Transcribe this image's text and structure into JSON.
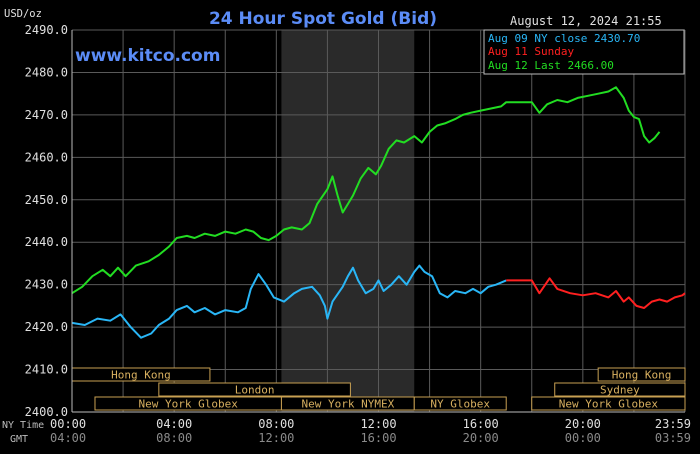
{
  "chart_data": {
    "type": "line",
    "title": "24 Hour Spot Gold (Bid)",
    "brand": "www.kitco.com",
    "timestamp": "August 12, 2024 21:55",
    "ylabel": "USD/oz",
    "ylim": [
      2400,
      2490
    ],
    "yticks": [
      "2490.0",
      "2480.0",
      "2470.0",
      "2460.0",
      "2450.0",
      "2440.0",
      "2430.0",
      "2420.0",
      "2410.0",
      "2400.0"
    ],
    "x_hours": [
      0,
      24
    ],
    "xtick_ny": [
      "00:00",
      "04:00",
      "08:00",
      "12:00",
      "16:00",
      "20:00",
      "23:59"
    ],
    "xtick_gmt": [
      "04:00",
      "08:00",
      "12:00",
      "16:00",
      "20:00",
      "00:00",
      "03:59"
    ],
    "row_labels": {
      "ny": "NY Time",
      "gmt": "GMT"
    },
    "legend": [
      {
        "name": "Aug 09 NY close 2430.70",
        "color": "#29b6f6"
      },
      {
        "name": "Aug 11 Sunday",
        "color": "#ff2020"
      },
      {
        "name": "Aug 12 Last 2466.00",
        "color": "#22dd22"
      }
    ],
    "highlight_band": [
      8.2,
      13.4
    ],
    "grid": true,
    "sessions": [
      {
        "name": "Hong Kong",
        "start": 0,
        "end": 5.4,
        "row": 0
      },
      {
        "name": "London",
        "start": 3.4,
        "end": 10.9,
        "row": 1
      },
      {
        "name": "New York Globex",
        "start": 0.9,
        "end": 8.2,
        "row": 2
      },
      {
        "name": "New York NYMEX",
        "start": 8.2,
        "end": 13.4,
        "row": 2
      },
      {
        "name": "NY Globex",
        "start": 13.4,
        "end": 17.0,
        "row": 2
      },
      {
        "name": "Hong Kong",
        "start": 20.6,
        "end": 24,
        "row": 0
      },
      {
        "name": "Sydney",
        "start": 18.9,
        "end": 24,
        "row": 1
      },
      {
        "name": "New York Globex",
        "start": 18.0,
        "end": 24,
        "row": 2
      }
    ],
    "series": [
      {
        "name": "Aug 09 NY close 2430.70",
        "color": "#29b6f6",
        "points": [
          [
            0,
            2421.0
          ],
          [
            0.5,
            2420.5
          ],
          [
            1.0,
            2422.0
          ],
          [
            1.5,
            2421.5
          ],
          [
            1.9,
            2423.0
          ],
          [
            2.3,
            2420.0
          ],
          [
            2.7,
            2417.5
          ],
          [
            3.1,
            2418.5
          ],
          [
            3.4,
            2420.5
          ],
          [
            3.8,
            2422.0
          ],
          [
            4.1,
            2424.0
          ],
          [
            4.5,
            2425.0
          ],
          [
            4.8,
            2423.5
          ],
          [
            5.2,
            2424.5
          ],
          [
            5.6,
            2423.0
          ],
          [
            6.0,
            2424.0
          ],
          [
            6.5,
            2423.5
          ],
          [
            6.8,
            2424.5
          ],
          [
            7.0,
            2429.0
          ],
          [
            7.3,
            2432.5
          ],
          [
            7.6,
            2430.0
          ],
          [
            7.9,
            2427.0
          ],
          [
            8.3,
            2426.0
          ],
          [
            8.7,
            2428.0
          ],
          [
            9.0,
            2429.0
          ],
          [
            9.4,
            2429.5
          ],
          [
            9.7,
            2427.5
          ],
          [
            9.9,
            2425.0
          ],
          [
            10.0,
            2422.0
          ],
          [
            10.2,
            2426.0
          ],
          [
            10.6,
            2429.5
          ],
          [
            10.8,
            2432.0
          ],
          [
            11.0,
            2434.0
          ],
          [
            11.2,
            2431.0
          ],
          [
            11.5,
            2428.0
          ],
          [
            11.8,
            2429.0
          ],
          [
            12.0,
            2431.0
          ],
          [
            12.2,
            2428.5
          ],
          [
            12.5,
            2430.0
          ],
          [
            12.8,
            2432.0
          ],
          [
            13.1,
            2430.0
          ],
          [
            13.4,
            2433.0
          ],
          [
            13.6,
            2434.5
          ],
          [
            13.8,
            2433.0
          ],
          [
            14.1,
            2432.0
          ],
          [
            14.4,
            2428.0
          ],
          [
            14.7,
            2427.0
          ],
          [
            15.0,
            2428.5
          ],
          [
            15.4,
            2428.0
          ],
          [
            15.7,
            2429.0
          ],
          [
            16.0,
            2428.0
          ],
          [
            16.3,
            2429.5
          ],
          [
            16.6,
            2430.0
          ],
          [
            17.0,
            2431.0
          ]
        ]
      },
      {
        "name": "Aug 11 Sunday",
        "color": "#ff2020",
        "points": [
          [
            17.0,
            2431.0
          ],
          [
            17.5,
            2431.0
          ],
          [
            18.0,
            2431.0
          ],
          [
            18.3,
            2428.0
          ],
          [
            18.7,
            2431.5
          ],
          [
            19.0,
            2429.0
          ],
          [
            19.5,
            2428.0
          ],
          [
            20.0,
            2427.5
          ],
          [
            20.5,
            2428.0
          ],
          [
            21.0,
            2427.0
          ],
          [
            21.3,
            2428.5
          ],
          [
            21.6,
            2426.0
          ],
          [
            21.8,
            2427.0
          ],
          [
            22.1,
            2425.0
          ],
          [
            22.4,
            2424.5
          ],
          [
            22.7,
            2426.0
          ],
          [
            23.0,
            2426.5
          ],
          [
            23.3,
            2426.0
          ],
          [
            23.6,
            2427.0
          ],
          [
            23.9,
            2427.5
          ],
          [
            24.0,
            2428.0
          ]
        ]
      },
      {
        "name": "Aug 12 Last 2466.00",
        "color": "#22dd22",
        "points": [
          [
            0,
            2428.0
          ],
          [
            0.4,
            2429.5
          ],
          [
            0.8,
            2432.0
          ],
          [
            1.2,
            2433.5
          ],
          [
            1.5,
            2432.0
          ],
          [
            1.8,
            2434.0
          ],
          [
            2.1,
            2432.0
          ],
          [
            2.5,
            2434.5
          ],
          [
            3.0,
            2435.5
          ],
          [
            3.4,
            2437.0
          ],
          [
            3.8,
            2439.0
          ],
          [
            4.1,
            2441.0
          ],
          [
            4.5,
            2441.5
          ],
          [
            4.8,
            2441.0
          ],
          [
            5.2,
            2442.0
          ],
          [
            5.6,
            2441.5
          ],
          [
            6.0,
            2442.5
          ],
          [
            6.4,
            2442.0
          ],
          [
            6.8,
            2443.0
          ],
          [
            7.1,
            2442.5
          ],
          [
            7.4,
            2441.0
          ],
          [
            7.7,
            2440.5
          ],
          [
            8.0,
            2441.5
          ],
          [
            8.3,
            2443.0
          ],
          [
            8.6,
            2443.5
          ],
          [
            9.0,
            2443.0
          ],
          [
            9.3,
            2444.5
          ],
          [
            9.6,
            2449.0
          ],
          [
            10.0,
            2452.5
          ],
          [
            10.2,
            2455.5
          ],
          [
            10.4,
            2451.0
          ],
          [
            10.6,
            2447.0
          ],
          [
            10.8,
            2449.0
          ],
          [
            11.0,
            2451.0
          ],
          [
            11.3,
            2455.0
          ],
          [
            11.6,
            2457.5
          ],
          [
            11.9,
            2456.0
          ],
          [
            12.1,
            2458.0
          ],
          [
            12.4,
            2462.0
          ],
          [
            12.7,
            2464.0
          ],
          [
            13.0,
            2463.5
          ],
          [
            13.4,
            2465.0
          ],
          [
            13.7,
            2463.5
          ],
          [
            14.0,
            2466.0
          ],
          [
            14.3,
            2467.5
          ],
          [
            14.6,
            2468.0
          ],
          [
            15.0,
            2469.0
          ],
          [
            15.3,
            2470.0
          ],
          [
            15.6,
            2470.5
          ],
          [
            16.0,
            2471.0
          ],
          [
            16.4,
            2471.5
          ],
          [
            16.8,
            2472.0
          ],
          [
            17.0,
            2473.0
          ],
          [
            17.5,
            2473.0
          ],
          [
            18.0,
            2473.0
          ],
          [
            18.3,
            2470.5
          ],
          [
            18.6,
            2472.5
          ],
          [
            19.0,
            2473.5
          ],
          [
            19.4,
            2473.0
          ],
          [
            19.8,
            2474.0
          ],
          [
            20.2,
            2474.5
          ],
          [
            20.6,
            2475.0
          ],
          [
            21.0,
            2475.5
          ],
          [
            21.3,
            2476.5
          ],
          [
            21.6,
            2474.0
          ],
          [
            21.8,
            2471.0
          ],
          [
            22.0,
            2469.5
          ],
          [
            22.2,
            2469.0
          ],
          [
            22.4,
            2465.0
          ],
          [
            22.6,
            2463.5
          ],
          [
            22.8,
            2464.5
          ],
          [
            23.0,
            2466.0
          ]
        ]
      }
    ]
  }
}
